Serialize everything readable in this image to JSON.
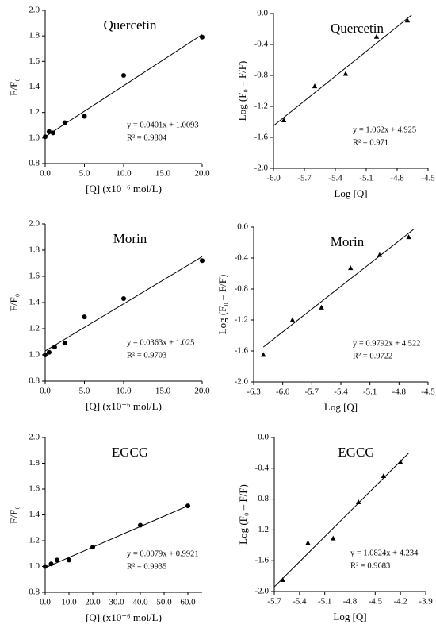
{
  "chart_data": [
    {
      "type": "scatter",
      "title": "Quercetin",
      "x_label": "[Q] (x10⁻⁶ mol/L)",
      "y_label": "F/F₀",
      "xlim": [
        0,
        20
      ],
      "ylim": [
        0.8,
        2.0
      ],
      "xticks": [
        {
          "value": 0,
          "label": "0.0"
        },
        {
          "value": 5,
          "label": "5.0"
        },
        {
          "value": 10,
          "label": "10.0"
        },
        {
          "value": 15,
          "label": "15.0"
        },
        {
          "value": 20,
          "label": "20.0"
        }
      ],
      "yticks": [
        0.8,
        {
          "value": 1,
          "label": "1.0"
        },
        1.2,
        1.4,
        1.6,
        1.8,
        {
          "value": 2,
          "label": "2.0"
        }
      ],
      "annotations": [
        "y = 0.0401x + 1.0093",
        "R² = 0.9804"
      ],
      "series": [
        {
          "type": "scatter",
          "marker": "circle",
          "color": "#000000",
          "x": [
            0,
            0.5,
            1,
            2.5,
            5,
            10,
            20
          ],
          "values": [
            1.01,
            1.05,
            1.04,
            1.12,
            1.17,
            1.49,
            1.79
          ]
        },
        {
          "type": "line",
          "color": "#000000",
          "x": [
            0,
            20
          ],
          "values": [
            1.01,
            1.81
          ]
        }
      ]
    },
    {
      "type": "scatter",
      "title": "Quercetin",
      "x_label": "Log [Q]",
      "y_label": "Log (F₀ – F/F)",
      "xlim": [
        -6.0,
        -4.5
      ],
      "ylim": [
        -2.0,
        0
      ],
      "xticks": [
        {
          "value": -6,
          "label": "-6.0"
        },
        -5.7,
        -5.4,
        -5.1,
        -4.8,
        -4.5
      ],
      "yticks": [
        {
          "value": 0,
          "label": "0.0"
        },
        -0.4,
        -0.8,
        -1.2,
        -1.6,
        {
          "value": -2,
          "label": "-2.0"
        }
      ],
      "annotations": [
        "y = 1.062x + 4.925",
        "R² = 0.971"
      ],
      "series": [
        {
          "type": "scatter",
          "marker": "triangle",
          "color": "#000000",
          "x": [
            -5.9,
            -5.6,
            -5.3,
            -5.0,
            -4.7
          ],
          "values": [
            -1.38,
            -0.94,
            -0.78,
            -0.3,
            -0.09
          ]
        },
        {
          "type": "line",
          "color": "#000000",
          "x": [
            -6.0,
            -4.66
          ],
          "values": [
            -1.45,
            -0.02
          ]
        }
      ]
    },
    {
      "type": "scatter",
      "title": "Morin",
      "x_label": "[Q] (x10⁻⁶ mol/L)",
      "y_label": "F/F₀",
      "xlim": [
        0,
        20
      ],
      "ylim": [
        0.8,
        2.0
      ],
      "xticks": [
        {
          "value": 0,
          "label": "0.0"
        },
        {
          "value": 5,
          "label": "5.0"
        },
        {
          "value": 10,
          "label": "10.0"
        },
        {
          "value": 15,
          "label": "15.0"
        },
        {
          "value": 20,
          "label": "20.0"
        }
      ],
      "yticks": [
        0.8,
        {
          "value": 1,
          "label": "1.0"
        },
        1.2,
        1.4,
        1.6,
        1.8,
        {
          "value": 2,
          "label": "2.0"
        }
      ],
      "annotations": [
        "y = 0.0363x + 1.025",
        "R² = 0.9703"
      ],
      "series": [
        {
          "type": "scatter",
          "marker": "circle",
          "color": "#000000",
          "x": [
            0,
            0.5,
            1.2,
            2.5,
            5,
            10,
            20
          ],
          "values": [
            1.0,
            1.02,
            1.06,
            1.09,
            1.29,
            1.43,
            1.72
          ]
        },
        {
          "type": "line",
          "color": "#000000",
          "x": [
            0,
            20
          ],
          "values": [
            1.03,
            1.75
          ]
        }
      ]
    },
    {
      "type": "scatter",
      "title": "Morin",
      "x_label": "Log [Q]",
      "y_label": "Log (F₀ – F/F)",
      "xlim": [
        -6.3,
        -4.5
      ],
      "ylim": [
        -2.0,
        0
      ],
      "xticks": [
        -6.3,
        {
          "value": -6,
          "label": "-6.0"
        },
        -5.7,
        -5.4,
        -5.1,
        -4.8,
        -4.5
      ],
      "yticks": [
        {
          "value": 0,
          "label": "0.0"
        },
        -0.4,
        -0.8,
        -1.2,
        -1.6,
        {
          "value": -2,
          "label": "-2.0"
        }
      ],
      "annotations": [
        "y = 0.9792x + 4.522",
        "R² = 0.9722"
      ],
      "series": [
        {
          "type": "scatter",
          "marker": "triangle",
          "color": "#000000",
          "x": [
            -6.2,
            -5.9,
            -5.6,
            -5.3,
            -5.0,
            -4.7
          ],
          "values": [
            -1.65,
            -1.2,
            -1.04,
            -0.53,
            -0.36,
            -0.13
          ]
        },
        {
          "type": "line",
          "color": "#000000",
          "x": [
            -6.2,
            -4.65
          ],
          "values": [
            -1.55,
            -0.03
          ]
        }
      ]
    },
    {
      "type": "scatter",
      "title": "EGCG",
      "x_label": "[Q] (x10⁻⁶ mol/L)",
      "y_label": "F/F₀",
      "xlim": [
        0,
        66
      ],
      "ylim": [
        0.8,
        2.0
      ],
      "xticks": [
        {
          "value": 0,
          "label": "0.0"
        },
        {
          "value": 10,
          "label": "10.0"
        },
        {
          "value": 20,
          "label": "20.0"
        },
        {
          "value": 30,
          "label": "30.0"
        },
        {
          "value": 40,
          "label": "40.0"
        },
        {
          "value": 50,
          "label": "50.0"
        },
        {
          "value": 60,
          "label": "60.0"
        }
      ],
      "yticks": [
        0.8,
        {
          "value": 1,
          "label": "1.0"
        },
        1.2,
        1.4,
        1.6,
        1.8,
        {
          "value": 2,
          "label": "2.0"
        }
      ],
      "annotations": [
        "y = 0.0079x + 0.9921",
        "R² = 0.9935"
      ],
      "series": [
        {
          "type": "scatter",
          "marker": "circle",
          "color": "#000000",
          "x": [
            0,
            2.5,
            5,
            10,
            20,
            40,
            60
          ],
          "values": [
            1.0,
            1.02,
            1.05,
            1.05,
            1.15,
            1.32,
            1.47
          ]
        },
        {
          "type": "line",
          "color": "#000000",
          "x": [
            0,
            60
          ],
          "values": [
            0.99,
            1.47
          ]
        }
      ]
    },
    {
      "type": "scatter",
      "title": "EGCG",
      "x_label": "Log [Q]",
      "y_label": "Log (F₀ – F/F)",
      "xlim": [
        -5.7,
        -3.9
      ],
      "ylim": [
        -2.0,
        0
      ],
      "xticks": [
        -5.7,
        -5.4,
        -5.1,
        -4.8,
        -4.5,
        -4.2,
        -3.9
      ],
      "yticks": [
        {
          "value": 0,
          "label": "0.0"
        },
        -0.4,
        -0.8,
        -1.2,
        -1.6,
        {
          "value": -2,
          "label": "-2.0"
        }
      ],
      "annotations": [
        "y = 1.0824x + 4.234",
        "R² = 0.9683"
      ],
      "series": [
        {
          "type": "scatter",
          "marker": "triangle",
          "color": "#000000",
          "x": [
            -5.6,
            -5.3,
            -5.0,
            -4.7,
            -4.4,
            -4.2
          ],
          "values": [
            -1.85,
            -1.37,
            -1.31,
            -0.84,
            -0.5,
            -0.32
          ]
        },
        {
          "type": "line",
          "color": "#000000",
          "x": [
            -5.7,
            -4.1
          ],
          "values": [
            -1.94,
            -0.2
          ]
        }
      ]
    }
  ]
}
